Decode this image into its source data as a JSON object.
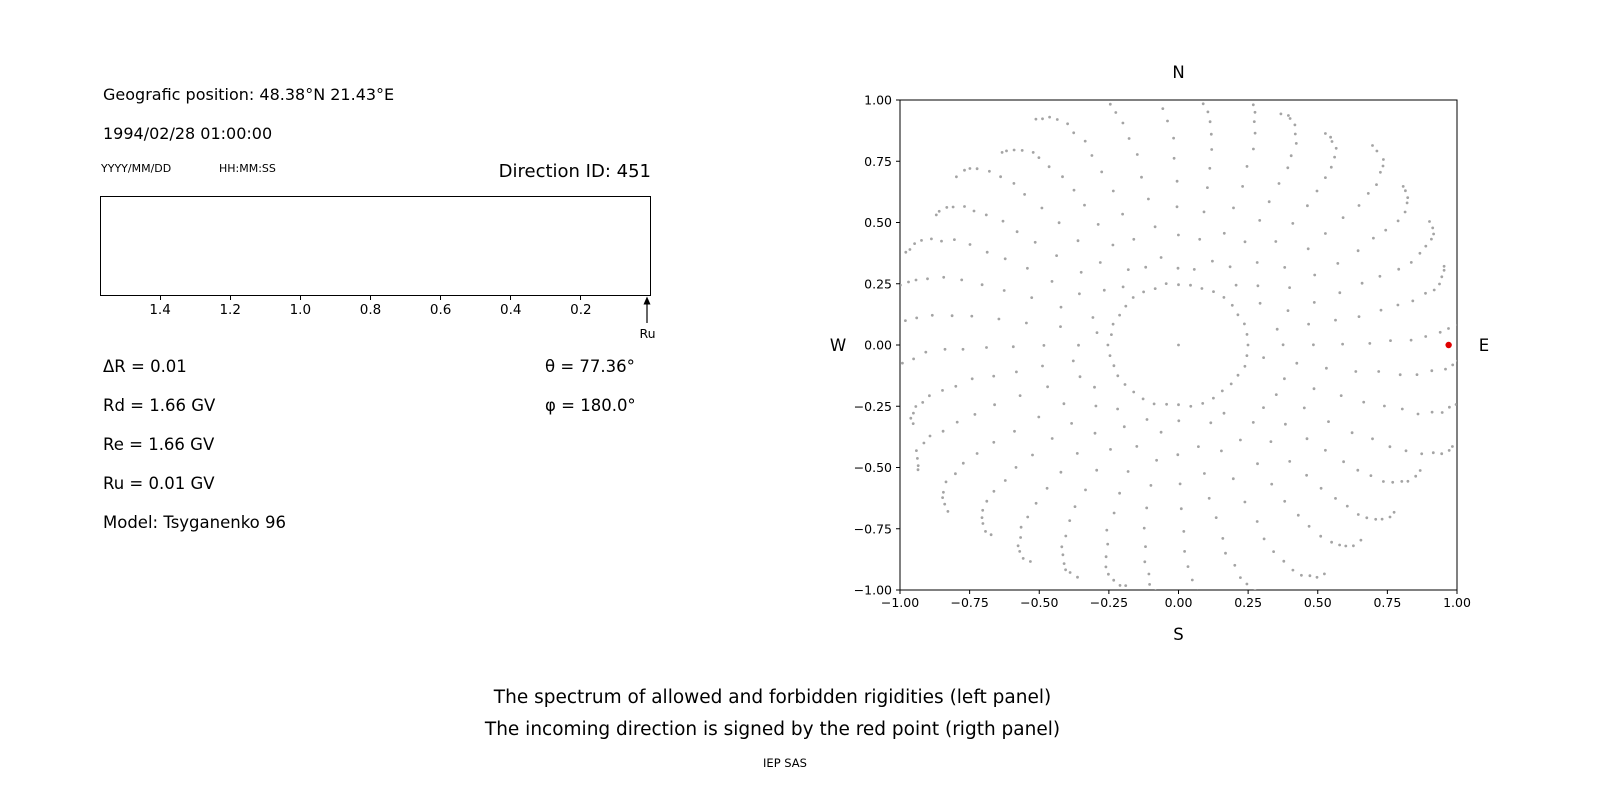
{
  "left_panel": {
    "geo_position": "Geografic position: 48.38°N 21.43°E",
    "datetime": "1994/02/28 01:00:00",
    "date_format": "YYYY/MM/DD",
    "time_format": "HH:MM:SS",
    "direction_id": "Direction ID: 451",
    "params_left": [
      "ΔR = 0.01",
      "Rd = 1.66 GV",
      "Re = 1.66 GV",
      "Ru = 0.01 GV",
      "Model: Tsyganenko 96"
    ],
    "params_right": [
      "θ = 77.36°",
      "φ = 180.0°"
    ]
  },
  "caption": {
    "line1": "The spectrum of allowed and forbidden rigidities (left panel)",
    "line2": "The incoming direction is signed by the red point (rigth panel)",
    "credit": "IEP SAS"
  },
  "colors": {
    "axis": "#000000",
    "trace_dots": "#9a9a9a",
    "incoming_point": "#e00000"
  },
  "chart_data": [
    {
      "type": "line",
      "panel": "left",
      "title": "",
      "xlabel": "",
      "ylabel": "",
      "xlim": [
        1.5714,
        0.0
      ],
      "x_ticks": [
        1.4,
        1.2,
        1.0,
        0.8,
        0.6,
        0.4,
        0.2
      ],
      "series": [],
      "grid": false,
      "annotations": [
        {
          "label": "Ru",
          "x": 0.01,
          "arrow": "up"
        }
      ]
    },
    {
      "type": "scatter",
      "panel": "right",
      "compass": {
        "top": "N",
        "bottom": "S",
        "left": "W",
        "right": "E"
      },
      "xlim": [
        -1.0,
        1.0
      ],
      "ylim": [
        -1.0,
        1.0
      ],
      "x_ticks": [
        -1.0,
        -0.75,
        -0.5,
        -0.25,
        0.0,
        0.25,
        0.5,
        0.75,
        1.0
      ],
      "y_ticks": [
        -1.0,
        -0.75,
        -0.5,
        -0.25,
        0.0,
        0.25,
        0.5,
        0.75,
        1.0
      ],
      "grid": false,
      "legend": "none",
      "series": [
        {
          "name": "direction-trace-dots",
          "marker": "dot",
          "color": "#9a9a9a",
          "generator": {
            "spokes": 36,
            "angle_step_deg": 10,
            "points_per_spoke": 13,
            "r_start_min": 0.3,
            "r_start_max": 0.42,
            "r_end_min": 1.0,
            "r_end_max": 1.08,
            "outer_densify": 2.2,
            "curvature_deg": 9,
            "inner_ring_radius": 0.25,
            "inner_ring_points": 36,
            "center_point": true,
            "seed": 42
          }
        },
        {
          "name": "incoming-direction",
          "marker": "dot",
          "color": "#e00000",
          "points": [
            [
              0.97,
              0.0
            ]
          ]
        }
      ]
    }
  ]
}
